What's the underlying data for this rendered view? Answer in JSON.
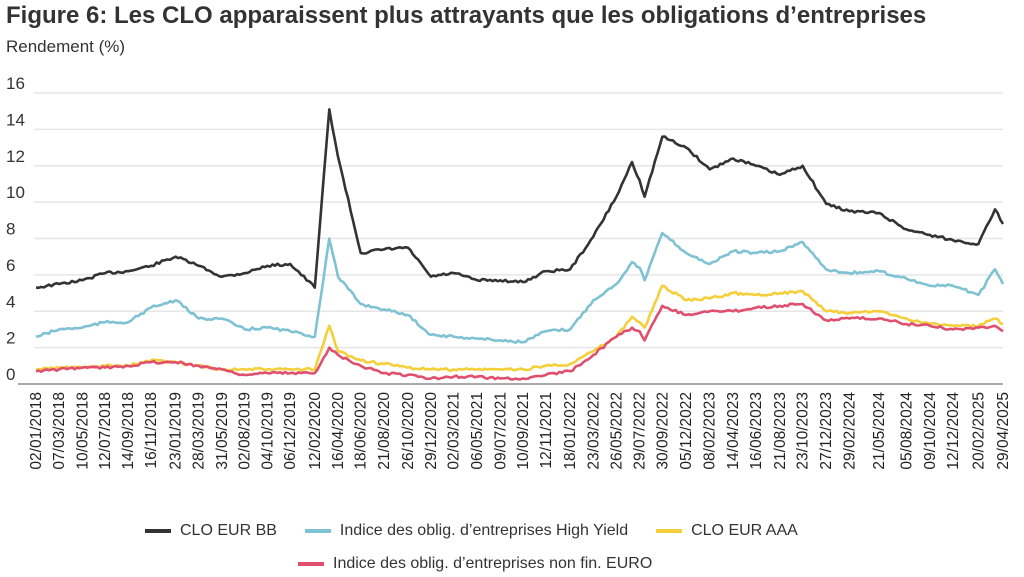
{
  "chart_data": {
    "type": "line",
    "title": "Figure 6: Les CLO apparaissent plus attrayants que les obligations d’entreprises",
    "ylabel": "Rendement (%)",
    "xlabel": "",
    "ylim": [
      0,
      16
    ],
    "yticks": [
      0,
      2,
      4,
      6,
      8,
      10,
      12,
      14,
      16
    ],
    "grid": "horizontal",
    "legend_position": "bottom",
    "xticks": [
      "02/01/2018",
      "07/03/2018",
      "10/05/2018",
      "12/07/2018",
      "14/09/2018",
      "16/11/2018",
      "23/01/2019",
      "28/03/2019",
      "31/05/2019",
      "02/08/2019",
      "04/10/2019",
      "06/12/2019",
      "12/02/2020",
      "16/04/2020",
      "18/06/2020",
      "21/08/2020",
      "26/10/2020",
      "29/12/2020",
      "02/03/2021",
      "06/05/2021",
      "09/07/2021",
      "10/09/2021",
      "12/11/2021",
      "18/01/2022",
      "23/03/2022",
      "26/05/2022",
      "29/07/2022",
      "30/09/2022",
      "05/12/2022",
      "08/02/2023",
      "14/04/2023",
      "16/06/2023",
      "21/08/2023",
      "23/10/2023",
      "27/12/2023",
      "29/02/2024",
      "21/05/2024",
      "05/08/2024",
      "09/10/2024",
      "12/12/2024",
      "20/02/2025",
      "29/04/2025"
    ],
    "x": [
      "02/01/2018",
      "07/03/2018",
      "10/05/2018",
      "12/07/2018",
      "14/09/2018",
      "16/11/2018",
      "23/01/2019",
      "28/03/2019",
      "31/05/2019",
      "02/08/2019",
      "04/10/2019",
      "06/12/2019",
      "12/02/2020",
      "23/03/2020",
      "16/04/2020",
      "18/06/2020",
      "21/08/2020",
      "26/10/2020",
      "29/12/2020",
      "02/03/2021",
      "06/05/2021",
      "09/07/2021",
      "10/09/2021",
      "12/11/2021",
      "18/01/2022",
      "23/03/2022",
      "26/05/2022",
      "08/07/2022",
      "29/07/2022",
      "12/08/2022",
      "30/09/2022",
      "05/12/2022",
      "08/02/2023",
      "14/04/2023",
      "16/06/2023",
      "21/08/2023",
      "23/10/2023",
      "27/12/2023",
      "29/02/2024",
      "21/05/2024",
      "05/08/2024",
      "09/10/2024",
      "12/12/2024",
      "20/02/2025",
      "07/04/2025",
      "29/04/2025"
    ],
    "series": [
      {
        "name": "CLO EUR BB",
        "color": "#333333",
        "values": [
          5.3,
          5.5,
          5.7,
          6.1,
          6.2,
          6.5,
          7.0,
          6.5,
          5.9,
          6.1,
          6.5,
          6.6,
          5.3,
          15.1,
          12.5,
          7.2,
          7.4,
          7.5,
          5.9,
          6.1,
          5.7,
          5.7,
          5.6,
          6.2,
          6.3,
          8.1,
          10.3,
          12.2,
          11.2,
          10.3,
          13.6,
          13.0,
          11.8,
          12.4,
          12.0,
          11.5,
          12.0,
          9.9,
          9.5,
          9.4,
          8.5,
          8.2,
          7.9,
          7.7,
          9.6,
          8.8
        ]
      },
      {
        "name": "Indice des oblig. d’entreprises High Yield",
        "color": "#7fc2d4",
        "values": [
          2.6,
          3.0,
          3.1,
          3.4,
          3.4,
          4.2,
          4.6,
          3.6,
          3.6,
          3.0,
          3.1,
          2.9,
          2.6,
          8.0,
          5.9,
          4.4,
          4.1,
          3.8,
          2.7,
          2.6,
          2.5,
          2.4,
          2.3,
          2.9,
          3.0,
          4.6,
          5.5,
          6.7,
          6.4,
          5.7,
          8.3,
          7.2,
          6.6,
          7.3,
          7.2,
          7.3,
          7.8,
          6.3,
          6.1,
          6.2,
          5.8,
          5.4,
          5.4,
          4.9,
          6.3,
          5.5
        ]
      },
      {
        "name": "CLO EUR AAA",
        "color": "#f5cf3a",
        "values": [
          0.8,
          0.9,
          0.9,
          1.0,
          1.0,
          1.3,
          1.2,
          1.0,
          0.8,
          0.8,
          0.8,
          0.8,
          0.8,
          3.2,
          1.8,
          1.3,
          1.1,
          0.9,
          0.8,
          0.8,
          0.8,
          0.8,
          0.8,
          1.0,
          1.1,
          1.8,
          2.6,
          3.7,
          3.4,
          3.1,
          5.4,
          4.6,
          4.7,
          5.0,
          4.9,
          5.0,
          5.1,
          4.0,
          3.9,
          4.0,
          3.6,
          3.3,
          3.2,
          3.2,
          3.6,
          3.3
        ]
      },
      {
        "name": "Indice des oblig. d’entreprises non fin. EURO",
        "color": "#e0506e",
        "values": [
          0.7,
          0.8,
          0.9,
          0.9,
          1.0,
          1.2,
          1.2,
          1.0,
          0.8,
          0.5,
          0.6,
          0.6,
          0.6,
          2.0,
          1.6,
          1.0,
          0.6,
          0.5,
          0.3,
          0.4,
          0.4,
          0.3,
          0.3,
          0.5,
          0.7,
          1.6,
          2.6,
          3.1,
          2.9,
          2.4,
          4.3,
          3.8,
          4.0,
          4.0,
          4.2,
          4.3,
          4.4,
          3.5,
          3.6,
          3.6,
          3.3,
          3.2,
          3.0,
          3.1,
          3.2,
          2.9
        ]
      }
    ]
  }
}
